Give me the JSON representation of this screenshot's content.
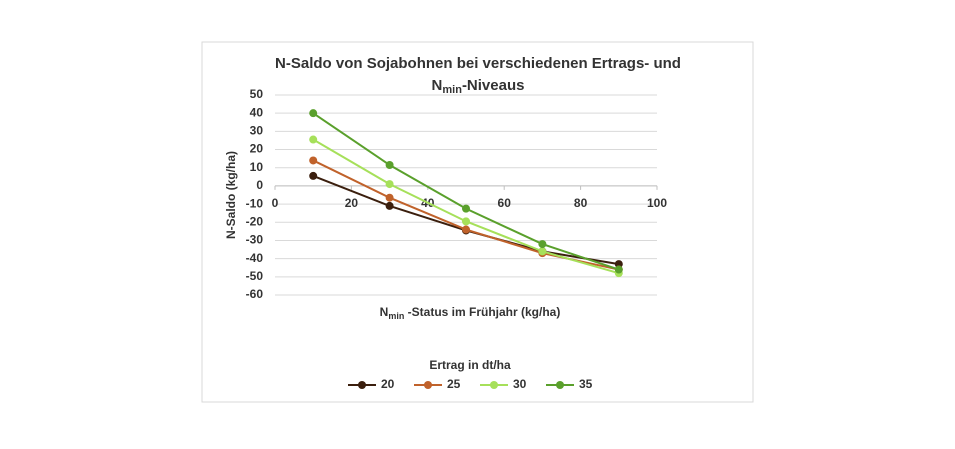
{
  "chart_data": {
    "type": "line",
    "title": "N-Saldo von Sojabohnen bei verschiedenen Ertrags- und",
    "title_line2": {
      "text": "N",
      "subscript": "min",
      "suffix": "-Niveaus"
    },
    "x_label": {
      "text": "N",
      "subscript": "min",
      "suffix": " -Status im Frühjahr  (kg/ha)"
    },
    "y_label": "N-Saldo (kg/ha)",
    "legend_title": "Ertrag in dt/ha",
    "x": [
      10,
      30,
      50,
      70,
      90
    ],
    "xlim": [
      0,
      100
    ],
    "xticks": [
      0,
      20,
      40,
      60,
      80,
      100
    ],
    "ylim": [
      -60,
      50
    ],
    "yticks": [
      -60,
      -50,
      -40,
      -30,
      -20,
      -10,
      0,
      10,
      20,
      30,
      40,
      50
    ],
    "grid": true,
    "legend": "bottom",
    "series": [
      {
        "name": "20",
        "color": "#3b1f0e",
        "values": [
          5.5,
          -11,
          -24.5,
          -36,
          -43
        ]
      },
      {
        "name": "25",
        "color": "#c0622b",
        "values": [
          14,
          -6.5,
          -24,
          -37,
          -46
        ]
      },
      {
        "name": "30",
        "color": "#a6e05a",
        "values": [
          25.5,
          1,
          -19.5,
          -36,
          -48
        ]
      },
      {
        "name": "35",
        "color": "#5aa02c",
        "values": [
          40,
          11.5,
          -12.5,
          -32,
          -46
        ]
      }
    ]
  }
}
